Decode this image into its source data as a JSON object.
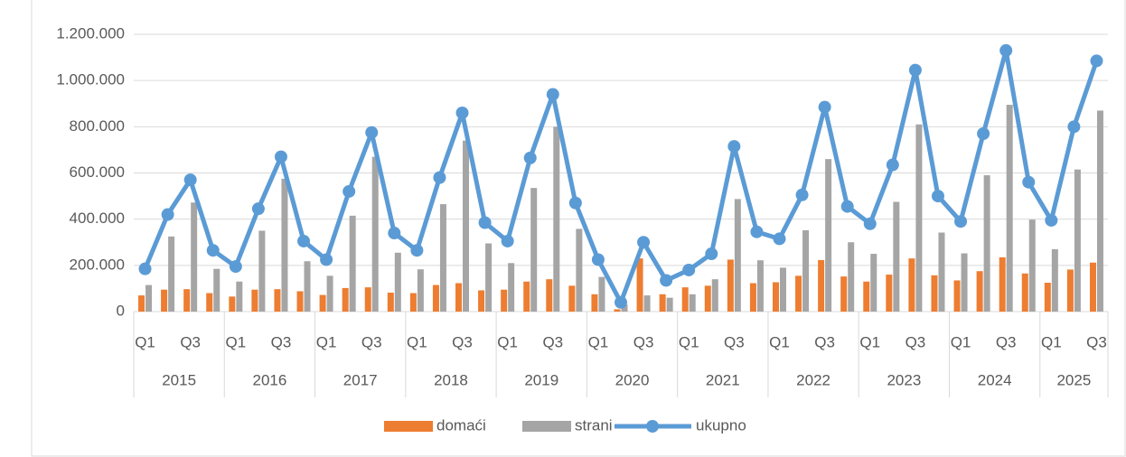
{
  "chart_data": {
    "type": "bar-line",
    "categories": [
      "Q1",
      null,
      "Q3",
      null,
      "Q1",
      null,
      "Q3",
      null,
      "Q1",
      null,
      "Q3",
      null,
      "Q1",
      null,
      "Q3",
      null,
      "Q1",
      null,
      "Q3",
      null,
      "Q1",
      null,
      "Q3",
      null,
      "Q1",
      null,
      "Q3",
      null,
      "Q1",
      null,
      "Q3",
      null,
      "Q1",
      null,
      "Q3",
      null,
      "Q1",
      null,
      "Q3",
      null,
      "Q1",
      null,
      "Q3"
    ],
    "x_groups": [
      {
        "label": "2015",
        "span": 4
      },
      {
        "label": "2016",
        "span": 4
      },
      {
        "label": "2017",
        "span": 4
      },
      {
        "label": "2018",
        "span": 4
      },
      {
        "label": "2019",
        "span": 4
      },
      {
        "label": "2020",
        "span": 4
      },
      {
        "label": "2021",
        "span": 4
      },
      {
        "label": "2022",
        "span": 4
      },
      {
        "label": "2023",
        "span": 4
      },
      {
        "label": "2024",
        "span": 4
      },
      {
        "label": "2025",
        "span": 3
      }
    ],
    "series": [
      {
        "name": "domaći",
        "kind": "bar",
        "color": "#ed7d31",
        "values": [
          70000,
          95000,
          97000,
          80000,
          65000,
          95000,
          97000,
          88000,
          72000,
          102000,
          105000,
          82000,
          80000,
          115000,
          123000,
          92000,
          95000,
          130000,
          140000,
          112000,
          75000,
          10000,
          230000,
          75000,
          105000,
          112000,
          225000,
          123000,
          127000,
          155000,
          223000,
          152000,
          130000,
          160000,
          230000,
          157000,
          135000,
          175000,
          235000,
          165000,
          125000,
          182000,
          212000
        ]
      },
      {
        "name": "strani",
        "kind": "bar",
        "color": "#a5a5a5",
        "values": [
          115000,
          325000,
          472000,
          185000,
          130000,
          350000,
          575000,
          218000,
          155000,
          415000,
          670000,
          255000,
          183000,
          465000,
          740000,
          295000,
          210000,
          535000,
          800000,
          358000,
          150000,
          30000,
          70000,
          60000,
          75000,
          140000,
          487000,
          222000,
          190000,
          352000,
          660000,
          300000,
          250000,
          475000,
          810000,
          342000,
          252000,
          590000,
          895000,
          398000,
          270000,
          615000,
          870000
        ]
      },
      {
        "name": "ukupno",
        "kind": "line",
        "color": "#5b9bd5",
        "values": [
          185000,
          420000,
          570000,
          265000,
          195000,
          445000,
          670000,
          305000,
          225000,
          520000,
          775000,
          340000,
          265000,
          580000,
          860000,
          385000,
          305000,
          665000,
          940000,
          470000,
          225000,
          40000,
          300000,
          135000,
          180000,
          250000,
          715000,
          345000,
          315000,
          505000,
          885000,
          455000,
          380000,
          635000,
          1045000,
          500000,
          390000,
          770000,
          1130000,
          560000,
          395000,
          800000,
          1085000
        ]
      }
    ],
    "ylim": [
      0,
      1200000
    ],
    "yticks": [
      0,
      {
        "value": 200000,
        "label": "200.000"
      },
      {
        "value": 400000,
        "label": "400.000"
      },
      {
        "value": 600000,
        "label": "600.000"
      },
      {
        "value": 800000,
        "label": "800.000"
      },
      {
        "value": 1000000,
        "label": "1.000.000"
      },
      {
        "value": 1200000,
        "label": "1.200.000"
      }
    ],
    "grid": true,
    "legend": "bottom"
  }
}
